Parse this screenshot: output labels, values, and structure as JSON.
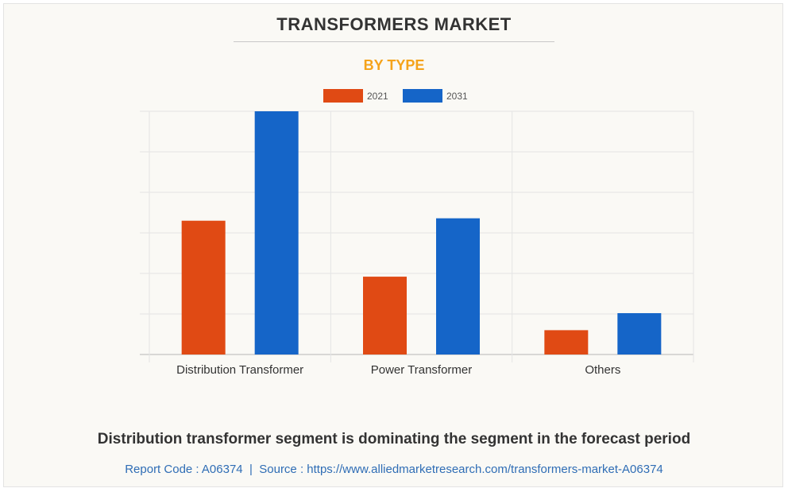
{
  "header": {
    "title": "TRANSFORMERS MARKET",
    "subtitle": "BY TYPE"
  },
  "chart_data": {
    "type": "bar",
    "categories": [
      "Distribution Transformer",
      "Power Transformer",
      "Others"
    ],
    "series": [
      {
        "name": "2021",
        "color": "#e04a14",
        "values": [
          5.5,
          3.2,
          1.0
        ]
      },
      {
        "name": "2031",
        "color": "#1565c8",
        "values": [
          10.0,
          5.6,
          1.7
        ]
      }
    ],
    "ylim": [
      0,
      10
    ],
    "grid": true,
    "legend": "top-center"
  },
  "footer": {
    "statement": "Distribution transformer segment is dominating the segment in the forecast period",
    "report_code": "Report Code : A06374",
    "separator": "|",
    "source": "Source : https://www.alliedmarketresearch.com/transformers-market-A06374"
  }
}
